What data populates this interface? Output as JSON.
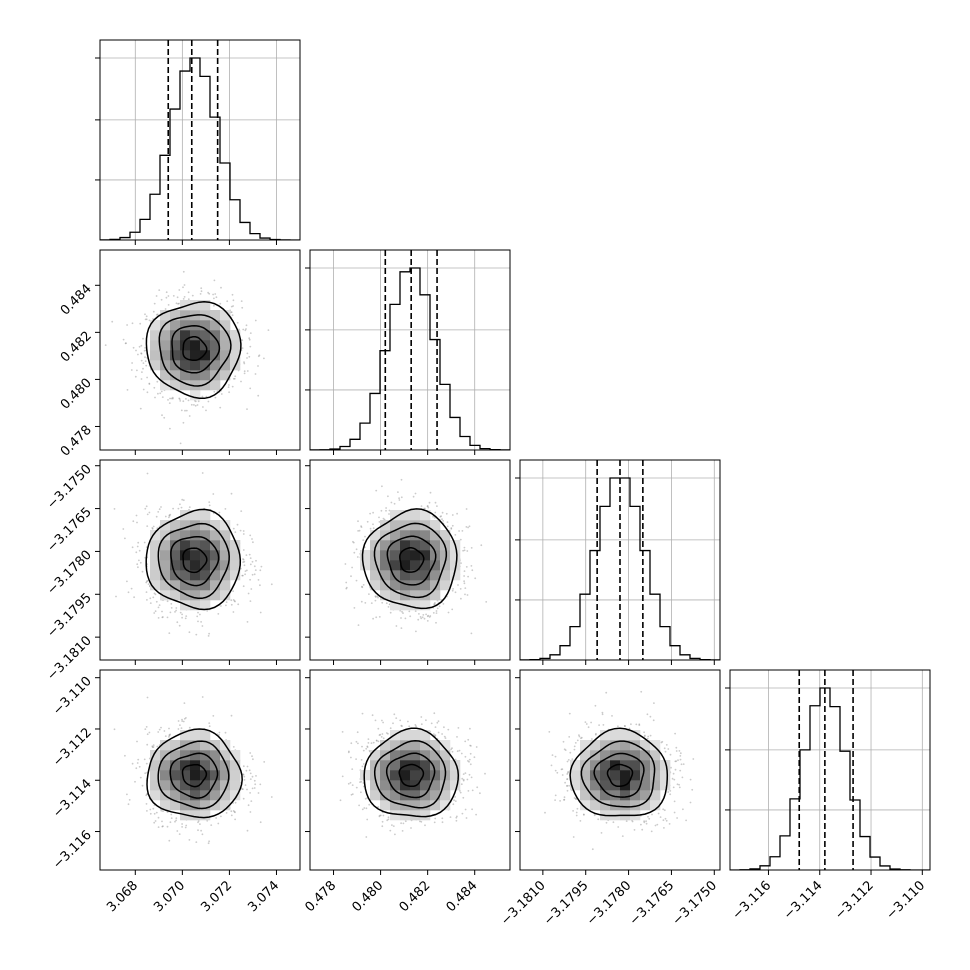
{
  "chart_data": {
    "type": "corner",
    "parameters": [
      {
        "lim": [
          3.0665,
          3.075
        ],
        "ticks": [
          {
            "v": 3.068,
            "label": "3.068"
          },
          {
            "v": 3.07,
            "label": "3.070"
          },
          {
            "v": 3.072,
            "label": "3.072"
          },
          {
            "v": 3.074,
            "label": "3.074"
          }
        ],
        "mean": 3.0705,
        "sd": 0.001,
        "quantiles": [
          3.0694,
          3.0704,
          3.0715
        ]
      },
      {
        "lim": [
          0.477,
          0.4855
        ],
        "ticks": [
          {
            "v": 0.478,
            "label": "0.478"
          },
          {
            "v": 0.48,
            "label": "0.480"
          },
          {
            "v": 0.482,
            "label": "0.482"
          },
          {
            "v": 0.484,
            "label": "0.484"
          }
        ],
        "mean": 0.4813,
        "sd": 0.001,
        "quantiles": [
          0.4802,
          0.4813,
          0.4824
        ]
      },
      {
        "lim": [
          -3.1818,
          -3.1748
        ],
        "ticks": [
          {
            "v": -3.181,
            "label": "−3.1810"
          },
          {
            "v": -3.1795,
            "label": "−3.1795"
          },
          {
            "v": -3.178,
            "label": "−3.1780"
          },
          {
            "v": -3.1765,
            "label": "−3.1765"
          },
          {
            "v": -3.175,
            "label": "−3.1750"
          }
        ],
        "mean": -3.1783,
        "sd": 0.00085,
        "quantiles": [
          -3.1791,
          -3.1783,
          -3.1775
        ]
      },
      {
        "lim": [
          -3.1175,
          -3.1097
        ],
        "ticks": [
          {
            "v": -3.116,
            "label": "−3.116"
          },
          {
            "v": -3.114,
            "label": "−3.114"
          },
          {
            "v": -3.112,
            "label": "−3.112"
          },
          {
            "v": -3.11,
            "label": "−3.110"
          }
        ],
        "mean": -3.1138,
        "sd": 0.00085,
        "quantiles": [
          -3.1148,
          -3.1138,
          -3.1127
        ]
      }
    ],
    "y_ticks": [
      null,
      [
        {
          "v": 0.478,
          "label": "0.478"
        },
        {
          "v": 0.48,
          "label": "0.480"
        },
        {
          "v": 0.482,
          "label": "0.482"
        },
        {
          "v": 0.484,
          "label": "0.484"
        }
      ],
      [
        {
          "v": -3.181,
          "label": "−3.1810"
        },
        {
          "v": -3.1795,
          "label": "−3.1795"
        },
        {
          "v": -3.178,
          "label": "−3.1780"
        },
        {
          "v": -3.1765,
          "label": "−3.1765"
        },
        {
          "v": -3.175,
          "label": "−3.1750"
        }
      ],
      [
        {
          "v": -3.116,
          "label": "−3.116"
        },
        {
          "v": -3.114,
          "label": "−3.114"
        },
        {
          "v": -3.112,
          "label": "−3.112"
        },
        {
          "v": -3.11,
          "label": "−3.110"
        }
      ]
    ],
    "histogram_bins": 20,
    "grid": true,
    "contour_levels": [
      0.5,
      1.0,
      1.5,
      2.0
    ]
  },
  "colors": {
    "line": "#000000",
    "grid": "#b0b0b0",
    "scatter": "#8c8c8c"
  }
}
